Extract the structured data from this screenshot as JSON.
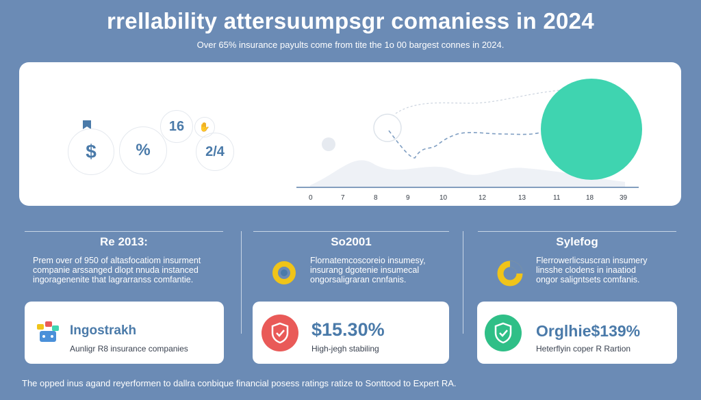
{
  "title": "rrellability attersuumpsgr comaniess in 2024",
  "subtitle": "Over 65% insurance payults come from tite the 1o 00 bargest connes in 2024.",
  "hero": {
    "icons": {
      "dollar": "$",
      "percent": "%",
      "value_a": "16",
      "value_b": "2/4"
    },
    "axis_ticks": [
      "0",
      "7",
      "8",
      "9",
      "10",
      "12",
      "13",
      "11",
      "18",
      "39"
    ]
  },
  "columns": [
    {
      "title": "Re 2013:",
      "text": [
        "Prem over of 950 of altasfocatiom insurment",
        "companie arssanged dlopt nnuda instanced",
        "ingoragenenite that lagrarranss comfantie."
      ],
      "card": {
        "heading": "Ingostrakh",
        "sub": "Aunligr R8 insurance companies",
        "icon": "company-group-icon"
      }
    },
    {
      "title": "So2001",
      "text": [
        "Flornatemcoscoreio insumesy,",
        "insurang dgotenie insumecal",
        "ongorsaligraran cnnfanis."
      ],
      "card": {
        "heading": "$15.30%",
        "sub": "High-jegh stabiling",
        "icon": "shield-check-icon",
        "icon_color": "#e95a58"
      }
    },
    {
      "title": "Sylefog",
      "text": [
        "Flerrowerlicsuscran insumery",
        "linsshe clodens in inaatiod",
        "ongor saligntsets comfanis."
      ],
      "card": {
        "heading": "Orglhie$139%",
        "sub": "Heterflyin coper R Rartion",
        "icon": "shield-check-icon",
        "icon_color": "#2fbf87"
      }
    }
  ],
  "footer": "The opped inus agand reyerformen to dallra conbique financial posess ratings ratize to Sonttood to Expert RA.",
  "colors": {
    "background": "#6b8bb5",
    "accent_blue": "#4a7aa9",
    "teal": "#3fd4b0",
    "ring_yellow": "#f0c419",
    "red": "#e95a58",
    "green": "#2fbf87"
  }
}
